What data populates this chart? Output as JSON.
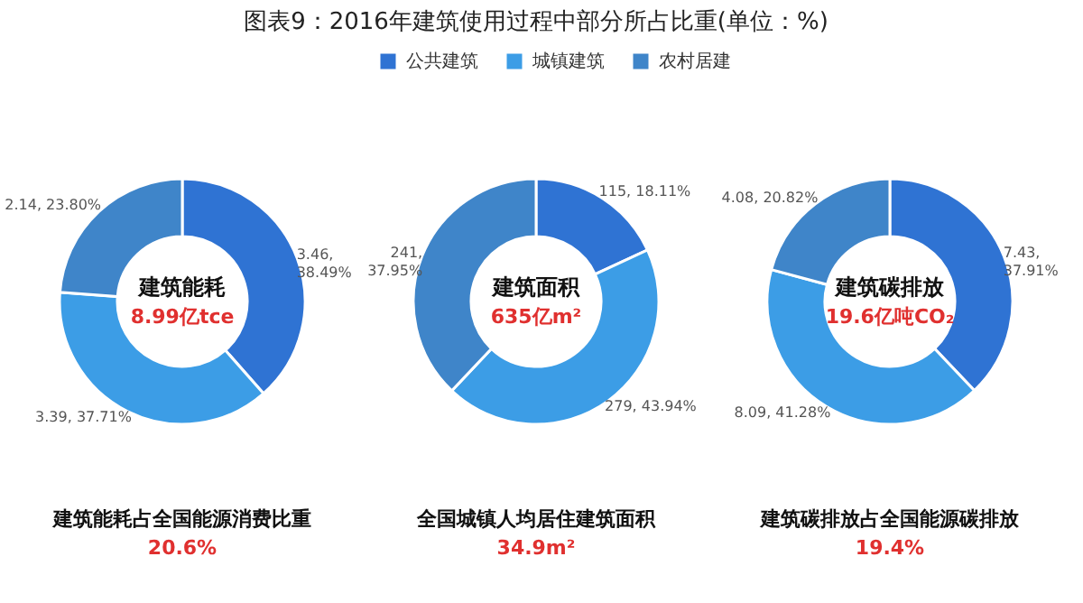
{
  "chart_data": [
    {
      "type": "donut",
      "values": [
        3.46,
        3.39,
        2.14
      ],
      "colors": [
        "#2f73d3",
        "#3c9de6",
        "#3f85c9"
      ],
      "value_labels": [
        "3.46, 38.49%",
        "3.39, 37.71%",
        "2.14, 23.80%"
      ],
      "annotations": [
        "建筑能耗",
        "8.99亿tce",
        "建筑能耗占全国能源消费比重",
        "20.6%"
      ]
    },
    {
      "type": "donut",
      "title": "图表9：2016年建筑使用过程中部分所占比重(单位：%)",
      "legend": "top",
      "categories": [
        "公共建筑",
        "城镇建筑",
        "农村居建"
      ],
      "values": [
        115,
        279,
        241
      ],
      "colors": [
        "#2f73d3",
        "#3c9de6",
        "#3f85c9"
      ],
      "value_labels": [
        "115, 18.11%",
        "279, 43.94%",
        "241, 37.95%"
      ],
      "annotations": [
        "建筑面积",
        "635亿m²",
        "全国城镇人均居住建筑面积",
        "34.9m²"
      ]
    },
    {
      "type": "donut",
      "values": [
        7.43,
        8.09,
        4.08
      ],
      "colors": [
        "#2f73d3",
        "#3c9de6",
        "#3f85c9"
      ],
      "value_labels": [
        "7.43, 37.91%",
        "8.09, 41.28%",
        "4.08, 20.82%"
      ],
      "annotations": [
        "建筑碳排放",
        "19.6亿吨CO₂",
        "建筑碳排放占全国能源碳排放",
        "19.4%"
      ]
    }
  ]
}
